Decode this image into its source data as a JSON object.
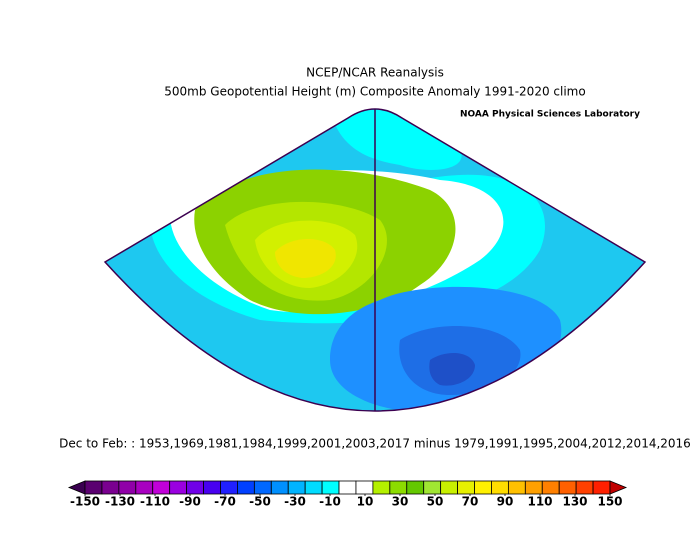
{
  "header": {
    "title": "NCEP/NCAR Reanalysis",
    "subtitle": "500mb Geopotential Height (m) Composite Anomaly 1991-2020 climo",
    "lab": "NOAA Physical Sciences Laboratory"
  },
  "caption": "Dec to Feb: : 1953,1969,1981,1984,1999,2001,2003,2017 minus 1979,1991,1995,2004,2012,2014,2016",
  "colorbar": {
    "ticks": [
      -150,
      -130,
      -110,
      -90,
      -70,
      -50,
      -30,
      -10,
      10,
      30,
      50,
      70,
      90,
      110,
      130,
      150
    ],
    "colors": [
      "#3a0050",
      "#5a0070",
      "#7a0090",
      "#9000a8",
      "#a800c0",
      "#c000d8",
      "#9a00e0",
      "#7000e8",
      "#4800f0",
      "#2020ff",
      "#0040ff",
      "#0068ff",
      "#0090ff",
      "#00b4ff",
      "#00dcff",
      "#00ffff",
      "#ffffff",
      "#ffffff",
      "#b4f000",
      "#8cdc00",
      "#64c800",
      "#a0e632",
      "#c8f000",
      "#e6f000",
      "#fff000",
      "#ffdc00",
      "#ffc000",
      "#ffa000",
      "#ff8000",
      "#ff6000",
      "#ff4000",
      "#ff2000",
      "#c00000"
    ]
  }
}
